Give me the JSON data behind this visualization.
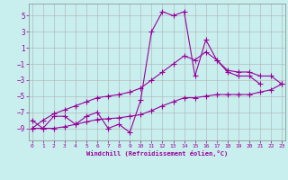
{
  "xlabel": "Windchill (Refroidissement éolien,°C)",
  "background_color": "#c8eeee",
  "grid_color": "#b0b0b0",
  "line_color": "#990099",
  "hours": [
    0,
    1,
    2,
    3,
    4,
    5,
    6,
    7,
    8,
    9,
    10,
    11,
    12,
    13,
    14,
    15,
    16,
    17,
    18,
    19,
    20,
    21,
    22,
    23
  ],
  "main_line": [
    -8.0,
    -9.0,
    -7.5,
    -7.5,
    -8.5,
    -7.5,
    -7.0,
    -9.0,
    -8.5,
    -9.5,
    -5.5,
    3.0,
    5.5,
    5.0,
    5.5,
    -2.5,
    2.0,
    -0.5,
    -2.0,
    -2.5,
    -2.5,
    -3.5,
    null,
    null
  ],
  "trend_upper": [
    -9.0,
    -8.0,
    -7.2,
    -6.7,
    -6.2,
    -5.7,
    -5.2,
    -5.0,
    -4.8,
    -4.5,
    -4.0,
    -3.0,
    -2.0,
    -1.0,
    -0.0,
    -0.5,
    0.5,
    -0.5,
    -1.8,
    -2.0,
    -2.0,
    -2.5,
    -2.5,
    -3.5
  ],
  "trend_lower": [
    -9.0,
    -9.0,
    -9.0,
    -8.8,
    -8.5,
    -8.2,
    -7.9,
    -7.8,
    -7.7,
    -7.5,
    -7.3,
    -6.8,
    -6.2,
    -5.7,
    -5.2,
    -5.2,
    -5.0,
    -4.8,
    -4.8,
    -4.8,
    -4.8,
    -4.5,
    -4.2,
    -3.5
  ],
  "ylim": [
    -10.5,
    6.5
  ],
  "yticks": [
    -9,
    -7,
    -5,
    -3,
    -1,
    1,
    3,
    5
  ],
  "xlim": [
    0,
    23
  ],
  "xticks": [
    0,
    1,
    2,
    3,
    4,
    5,
    6,
    7,
    8,
    9,
    10,
    11,
    12,
    13,
    14,
    15,
    16,
    17,
    18,
    19,
    20,
    21,
    22,
    23
  ],
  "marker": "+",
  "marker_size": 4,
  "line_width": 0.8
}
